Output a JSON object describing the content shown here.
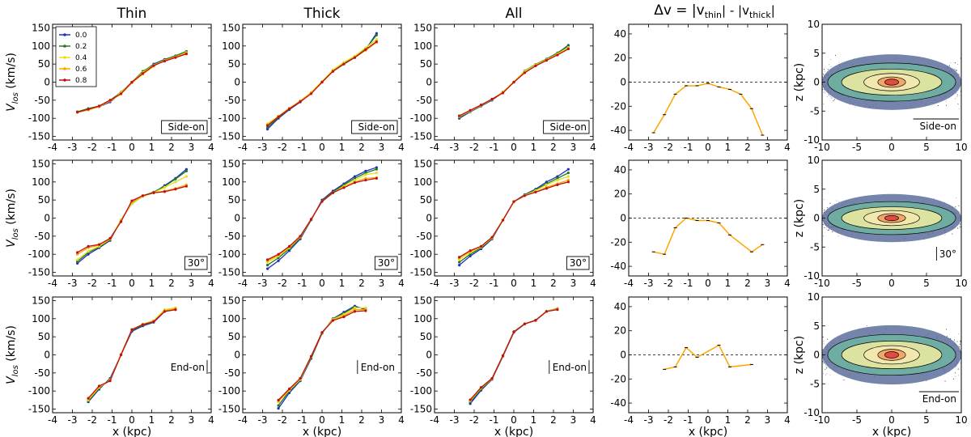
{
  "column_titles": [
    "Thin",
    "Thick",
    "All",
    "Δv = |v_thin| - |v_thick|"
  ],
  "delta_title_parts": {
    "pre": "Δv = |v",
    "sub1": "thin",
    "mid": "| - |v",
    "sub2": "thick",
    "post": "|"
  },
  "row_tags": [
    "Side-on",
    "30°",
    "End-on"
  ],
  "ylabel_vlos": {
    "main": "V",
    "sub": "los",
    "rest": " (km/s)"
  },
  "xlabel": "x (kpc)",
  "zlabel": "z (kpc)",
  "legend_labels": [
    "0.0",
    "0.2",
    "0.4",
    "0.6",
    "0.8"
  ],
  "colors": {
    "s0": "#1f2fbf",
    "s1": "#1f7a1f",
    "s2": "#e0e020",
    "s3": "#ffa500",
    "s4": "#c01010",
    "delta": "#ffa500"
  },
  "chart_data": {
    "type": "line",
    "velocity_axes": {
      "xlim": [
        -4,
        4
      ],
      "ylim": [
        -160,
        160
      ],
      "xticks": [
        -4,
        -3,
        -2,
        -1,
        0,
        1,
        2,
        3,
        4
      ],
      "yticks": [
        -150,
        -100,
        -50,
        0,
        50,
        100,
        150
      ]
    },
    "delta_axes": {
      "xlim": [
        -4,
        4
      ],
      "ylim": [
        -48,
        48
      ],
      "xticks": [
        -4,
        -3,
        -2,
        -1,
        0,
        1,
        2,
        3,
        4
      ],
      "yticks": [
        -40,
        -20,
        0,
        20,
        40
      ]
    },
    "map_axes": {
      "xlim": [
        -10,
        10
      ],
      "ylim": [
        -10,
        10
      ],
      "xticks": [
        -10,
        -5,
        0,
        5,
        10
      ],
      "yticks": [
        -10,
        -5,
        0,
        5,
        10
      ]
    },
    "x_side": [
      -2.75,
      -2.2,
      -1.65,
      -1.1,
      -0.55,
      0,
      0.55,
      1.1,
      1.65,
      2.2,
      2.75
    ],
    "x_end": [
      -2.2,
      -1.65,
      -1.1,
      -0.55,
      0,
      0.55,
      1.1,
      1.65,
      2.2
    ],
    "rows": [
      {
        "tag": "Side-on",
        "velocity": {
          "Thin": [
            {
              "name": "0.0",
              "values": [
                -82,
                -75,
                -68,
                -55,
                -30,
                0,
                28,
                50,
                63,
                72,
                84
              ]
            },
            {
              "name": "0.2",
              "values": [
                -82,
                -73,
                -66,
                -50,
                -28,
                0,
                30,
                48,
                62,
                73,
                85
              ]
            },
            {
              "name": "0.4",
              "values": [
                -83,
                -76,
                -67,
                -52,
                -29,
                0,
                27,
                47,
                60,
                70,
                82
              ]
            },
            {
              "name": "0.6",
              "values": [
                -84,
                -77,
                -68,
                -52,
                -33,
                -2,
                22,
                44,
                60,
                70,
                80
              ]
            },
            {
              "name": "0.8",
              "values": [
                -83,
                -75,
                -66,
                -50,
                -32,
                0,
                24,
                46,
                58,
                68,
                78
              ]
            }
          ],
          "Thick": [
            {
              "name": "0.0",
              "values": [
                -130,
                -100,
                -76,
                -55,
                -30,
                0,
                30,
                50,
                68,
                90,
                135
              ]
            },
            {
              "name": "0.2",
              "values": [
                -125,
                -98,
                -75,
                -53,
                -30,
                0,
                32,
                52,
                70,
                92,
                130
              ]
            },
            {
              "name": "0.4",
              "values": [
                -115,
                -95,
                -73,
                -52,
                -28,
                2,
                34,
                55,
                72,
                95,
                118
              ]
            },
            {
              "name": "0.6",
              "values": [
                -118,
                -94,
                -72,
                -52,
                -30,
                0,
                30,
                50,
                68,
                88,
                110
              ]
            },
            {
              "name": "0.8",
              "values": [
                -120,
                -96,
                -74,
                -54,
                -32,
                0,
                30,
                50,
                68,
                90,
                112
              ]
            }
          ],
          "All": [
            {
              "name": "0.0",
              "values": [
                -100,
                -82,
                -66,
                -50,
                -28,
                0,
                30,
                48,
                63,
                80,
                102
              ]
            },
            {
              "name": "0.2",
              "values": [
                -98,
                -80,
                -65,
                -48,
                -27,
                0,
                31,
                49,
                64,
                81,
                100
              ]
            },
            {
              "name": "0.4",
              "values": [
                -95,
                -80,
                -64,
                -48,
                -27,
                1,
                30,
                48,
                62,
                78,
                96
              ]
            },
            {
              "name": "0.6",
              "values": [
                -94,
                -78,
                -63,
                -47,
                -28,
                -1,
                26,
                46,
                61,
                76,
                92
              ]
            },
            {
              "name": "0.8",
              "values": [
                -93,
                -78,
                -63,
                -47,
                -30,
                0,
                26,
                45,
                60,
                75,
                92
              ]
            }
          ]
        },
        "delta": [
          -42,
          -27,
          -10,
          -3,
          -3,
          -1,
          -4,
          -6,
          -10,
          -22,
          -44
        ]
      },
      {
        "tag": "30°",
        "velocity": {
          "Thin": [
            {
              "name": "0.0",
              "values": [
                -125,
                -100,
                -82,
                -62,
                -5,
                40,
                60,
                70,
                90,
                110,
                135
              ]
            },
            {
              "name": "0.2",
              "values": [
                -120,
                -95,
                -80,
                -60,
                -6,
                42,
                62,
                72,
                88,
                108,
                130
              ]
            },
            {
              "name": "0.4",
              "values": [
                -115,
                -92,
                -78,
                -58,
                -5,
                40,
                60,
                70,
                85,
                100,
                115
              ]
            },
            {
              "name": "0.6",
              "values": [
                -100,
                -82,
                -75,
                -58,
                -8,
                45,
                62,
                70,
                75,
                82,
                92
              ]
            },
            {
              "name": "0.8",
              "values": [
                -95,
                -78,
                -73,
                -56,
                -10,
                48,
                62,
                70,
                73,
                80,
                88
              ]
            }
          ],
          "Thick": [
            {
              "name": "0.0",
              "values": [
                -140,
                -118,
                -90,
                -58,
                -5,
                50,
                75,
                95,
                115,
                130,
                140
              ]
            },
            {
              "name": "0.2",
              "values": [
                -130,
                -110,
                -85,
                -55,
                -5,
                48,
                72,
                92,
                110,
                125,
                135
              ]
            },
            {
              "name": "0.4",
              "values": [
                -122,
                -105,
                -82,
                -52,
                -3,
                46,
                70,
                88,
                105,
                120,
                125
              ]
            },
            {
              "name": "0.6",
              "values": [
                -118,
                -102,
                -80,
                -52,
                -3,
                46,
                70,
                85,
                100,
                110,
                112
              ]
            },
            {
              "name": "0.8",
              "values": [
                -115,
                -100,
                -78,
                -50,
                -3,
                46,
                70,
                84,
                98,
                105,
                110
              ]
            }
          ],
          "All": [
            {
              "name": "0.0",
              "values": [
                -130,
                -105,
                -85,
                -58,
                -5,
                45,
                65,
                80,
                100,
                115,
                135
              ]
            },
            {
              "name": "0.2",
              "values": [
                -122,
                -100,
                -82,
                -56,
                -5,
                45,
                64,
                78,
                95,
                110,
                125
              ]
            },
            {
              "name": "0.4",
              "values": [
                -115,
                -95,
                -80,
                -55,
                -4,
                44,
                63,
                76,
                92,
                105,
                115
              ]
            },
            {
              "name": "0.6",
              "values": [
                -110,
                -92,
                -78,
                -54,
                -5,
                45,
                62,
                72,
                85,
                95,
                105
              ]
            },
            {
              "name": "0.8",
              "values": [
                -108,
                -90,
                -78,
                -53,
                -6,
                46,
                62,
                72,
                82,
                92,
                100
              ]
            }
          ]
        },
        "delta": [
          -28,
          -30,
          -8,
          0,
          -2,
          -2,
          -4,
          -14,
          -28,
          -22
        ]
      },
      {
        "tag": "End-on",
        "velocity": {
          "Thin": [
            {
              "name": "0.0",
              "values": [
                -130,
                -95,
                -65,
                0,
                65,
                80,
                90,
                120,
                125
              ]
            },
            {
              "name": "0.2",
              "values": [
                -128,
                -92,
                -68,
                0,
                68,
                82,
                92,
                122,
                128
              ]
            },
            {
              "name": "0.4",
              "values": [
                -125,
                -90,
                -70,
                0,
                70,
                85,
                95,
                125,
                130
              ]
            },
            {
              "name": "0.6",
              "values": [
                -122,
                -88,
                -72,
                2,
                70,
                84,
                92,
                122,
                128
              ]
            },
            {
              "name": "0.8",
              "values": [
                -120,
                -86,
                -72,
                0,
                70,
                84,
                92,
                120,
                125
              ]
            }
          ],
          "Thick": [
            {
              "name": "0.0",
              "values": [
                -148,
                -105,
                -72,
                -10,
                60,
                100,
                118,
                135,
                125
              ]
            },
            {
              "name": "0.2",
              "values": [
                -140,
                -100,
                -70,
                -8,
                60,
                100,
                115,
                132,
                128
              ]
            },
            {
              "name": "0.4",
              "values": [
                -130,
                -98,
                -68,
                -5,
                62,
                98,
                112,
                130,
                130
              ]
            },
            {
              "name": "0.6",
              "values": [
                -128,
                -96,
                -66,
                -4,
                62,
                96,
                108,
                125,
                125
              ]
            },
            {
              "name": "0.8",
              "values": [
                -125,
                -94,
                -65,
                -4,
                62,
                95,
                105,
                120,
                122
              ]
            }
          ],
          "All": [
            {
              "name": "0.0",
              "values": [
                -135,
                -98,
                -68,
                -4,
                62,
                85,
                96,
                120,
                128
              ]
            },
            {
              "name": "0.2",
              "values": [
                -130,
                -95,
                -67,
                -3,
                63,
                86,
                96,
                121,
                128
              ]
            },
            {
              "name": "0.4",
              "values": [
                -127,
                -92,
                -66,
                -2,
                64,
                86,
                95,
                121,
                127
              ]
            },
            {
              "name": "0.6",
              "values": [
                -125,
                -90,
                -65,
                -2,
                64,
                86,
                95,
                120,
                126
              ]
            },
            {
              "name": "0.8",
              "values": [
                -124,
                -90,
                -65,
                -2,
                64,
                86,
                95,
                120,
                125
              ]
            }
          ]
        },
        "delta": [
          -12,
          -10,
          6,
          -2,
          8,
          -10,
          -8
        ]
      }
    ],
    "delta_x": [
      [
        -2.75,
        -2.2,
        -1.65,
        -1.1,
        -0.55,
        0,
        0.55,
        1.1,
        1.65,
        2.2,
        2.75
      ],
      [
        -2.75,
        -2.2,
        -1.65,
        -1.1,
        -0.55,
        0,
        0.55,
        1.1,
        2.2,
        2.75
      ],
      [
        -2.2,
        -1.65,
        -1.1,
        -0.55,
        0.55,
        1.1,
        2.2
      ]
    ],
    "density_map": {
      "levels": 5,
      "colormap": [
        "#d0d0d8",
        "#5c6e9c",
        "#6fb0a0",
        "#e8e8a0",
        "#f0a060",
        "#e04040"
      ],
      "scale_heights": [
        1.5,
        1.3,
        1.6
      ]
    }
  }
}
